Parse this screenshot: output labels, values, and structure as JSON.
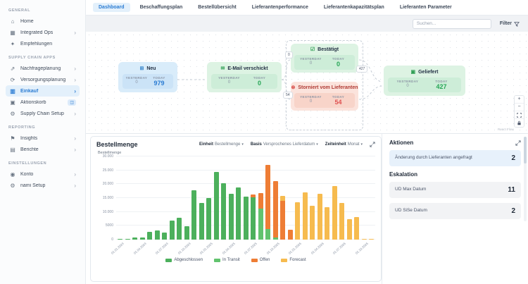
{
  "icons": {
    "home": "⌂",
    "apps-grid": "▦",
    "recommendations": "✦",
    "demand-planning": "⇗",
    "supply-planning": "⟳",
    "purchasing-cart": "▥",
    "action-basket": "▣",
    "settings-gear": "⚙",
    "insights-flag": "⚑",
    "reports": "▤",
    "account-user": "◉",
    "neu": "⊞",
    "email": "✉",
    "check": "☑",
    "cancel": "⊗",
    "delivered": "▣",
    "caret": "▾",
    "chevron": "›",
    "plus": "+",
    "minus": "−",
    "badge": "◫"
  },
  "sidebar": {
    "sections": [
      {
        "label": "GENERAL",
        "items": [
          {
            "label": "Home",
            "icon": "home",
            "chevron": false
          },
          {
            "label": "Integrated Ops",
            "icon": "apps-grid",
            "chevron": true
          },
          {
            "label": "Empfehlungen",
            "icon": "recommendations",
            "chevron": false
          }
        ]
      },
      {
        "label": "SUPPLY CHAIN APPS",
        "items": [
          {
            "label": "Nachfrageplanung",
            "icon": "demand-planning",
            "chevron": true
          },
          {
            "label": "Versorgungsplanung",
            "icon": "supply-planning",
            "chevron": true
          },
          {
            "label": "Einkauf",
            "icon": "purchasing-cart",
            "chevron": true,
            "active": true
          },
          {
            "label": "Aktionskorb",
            "icon": "action-basket",
            "chevron": false,
            "badge": true
          },
          {
            "label": "Supply Chain Setup",
            "icon": "settings-gear",
            "chevron": true
          }
        ]
      },
      {
        "label": "REPORTING",
        "items": [
          {
            "label": "Insights",
            "icon": "insights-flag",
            "chevron": true
          },
          {
            "label": "Berichte",
            "icon": "reports",
            "chevron": true
          }
        ]
      },
      {
        "label": "EINSTELLUNGEN",
        "items": [
          {
            "label": "Konto",
            "icon": "account-user",
            "chevron": true
          },
          {
            "label": "nami Setup",
            "icon": "settings-gear",
            "chevron": true
          }
        ]
      }
    ]
  },
  "tabs": {
    "items": [
      "Dashboard",
      "Beschaffungsplan",
      "Bestellübersicht",
      "Lieferantenperformance",
      "Lieferantenkapazitätsplan",
      "Lieferanten Parameter"
    ],
    "active_index": 0
  },
  "toolbar": {
    "search_placeholder": "Suchen...",
    "filter_label": "Filter"
  },
  "flow": {
    "yesterday_label": "YESTERDAY",
    "today_label": "TODAY",
    "cards": [
      {
        "title": "Neu",
        "yesterday": "0",
        "today": "979"
      },
      {
        "title": "E-Mail verschickt",
        "yesterday": "0",
        "today": "0"
      },
      {
        "title": "Bestätigt",
        "yesterday": "0",
        "today": "0"
      },
      {
        "title": "Storniert vom Lieferanten",
        "yesterday": "0",
        "today": "54"
      },
      {
        "title": "Geliefert",
        "yesterday": "0",
        "today": "427"
      }
    ],
    "edge_labels": [
      "0",
      "54",
      "427"
    ],
    "attribution": "React Flow"
  },
  "chart": {
    "title": "Bestellmenge",
    "controls": [
      {
        "label": "Einheit",
        "value": "Bestellmenge"
      },
      {
        "label": "Basis",
        "value": "Versprochenes Lieferdatum"
      },
      {
        "label": "Zeiteinheit",
        "value": "Monat"
      }
    ]
  },
  "chart_data": {
    "type": "bar",
    "title": "Bestellmenge",
    "ylabel": "Bestellmenge",
    "ylim": [
      0,
      30000
    ],
    "grid": true,
    "legend_position": "bottom",
    "yticks": [
      {
        "label": "0",
        "value": 0
      },
      {
        "label": "5000",
        "value": 5000
      },
      {
        "label": "10.000",
        "value": 10000
      },
      {
        "label": "15.000",
        "value": 15000
      },
      {
        "label": "20.000",
        "value": 20000
      },
      {
        "label": "25.000",
        "value": 25000
      },
      {
        "label": "30.000",
        "value": 30000
      }
    ],
    "colors": {
      "abgeschlossen": "#4cb05c",
      "in_transit": "#62c36e",
      "offen": "#ee7d35",
      "forecast": "#f6bb4f"
    },
    "legend": [
      {
        "label": "Abgeschlossen",
        "key": "abgeschlossen"
      },
      {
        "label": "In Transit",
        "key": "in_transit"
      },
      {
        "label": "Offen",
        "key": "offen"
      },
      {
        "label": "Forecast",
        "key": "forecast"
      }
    ],
    "label_every": 3,
    "bars": [
      {
        "month": "01.01.2024",
        "segments": [
          [
            "abgeschlossen",
            200
          ]
        ]
      },
      {
        "month": "01.02.2024",
        "segments": [
          [
            "abgeschlossen",
            150
          ]
        ]
      },
      {
        "month": "01.03.2024",
        "segments": [
          [
            "abgeschlossen",
            700
          ]
        ]
      },
      {
        "month": "01.04.2024",
        "segments": [
          [
            "abgeschlossen",
            650
          ]
        ]
      },
      {
        "month": "01.05.2024",
        "segments": [
          [
            "abgeschlossen",
            2900
          ]
        ]
      },
      {
        "month": "01.06.2024",
        "segments": [
          [
            "abgeschlossen",
            3400
          ]
        ]
      },
      {
        "month": "01.07.2024",
        "segments": [
          [
            "abgeschlossen",
            2500
          ]
        ]
      },
      {
        "month": "01.08.2024",
        "segments": [
          [
            "abgeschlossen",
            6800
          ]
        ]
      },
      {
        "month": "01.09.2024",
        "segments": [
          [
            "abgeschlossen",
            7900
          ]
        ]
      },
      {
        "month": "01.10.2024",
        "segments": [
          [
            "abgeschlossen",
            4800
          ]
        ]
      },
      {
        "month": "01.11.2024",
        "segments": [
          [
            "abgeschlossen",
            17800
          ]
        ]
      },
      {
        "month": "01.12.2024",
        "segments": [
          [
            "abgeschlossen",
            13200
          ]
        ]
      },
      {
        "month": "01.01.2025",
        "segments": [
          [
            "abgeschlossen",
            15000
          ]
        ]
      },
      {
        "month": "01.02.2025",
        "segments": [
          [
            "abgeschlossen",
            24500
          ]
        ]
      },
      {
        "month": "01.03.2025",
        "segments": [
          [
            "abgeschlossen",
            20400
          ]
        ]
      },
      {
        "month": "01.04.2025",
        "segments": [
          [
            "abgeschlossen",
            16500
          ]
        ]
      },
      {
        "month": "01.05.2025",
        "segments": [
          [
            "abgeschlossen",
            18800
          ]
        ]
      },
      {
        "month": "01.06.2025",
        "segments": [
          [
            "abgeschlossen",
            15600
          ]
        ]
      },
      {
        "month": "01.07.2025",
        "segments": [
          [
            "abgeschlossen",
            15200
          ],
          [
            "offen",
            900
          ]
        ]
      },
      {
        "month": "01.08.2025",
        "segments": [
          [
            "in_transit",
            11300
          ],
          [
            "offen",
            5500
          ]
        ]
      },
      {
        "month": "01.09.2025",
        "segments": [
          [
            "in_transit",
            3900
          ],
          [
            "offen",
            23200
          ]
        ]
      },
      {
        "month": "01.10.2025",
        "segments": [
          [
            "in_transit",
            700
          ],
          [
            "offen",
            20400
          ]
        ]
      },
      {
        "month": "01.11.2025",
        "segments": [
          [
            "offen",
            14000
          ],
          [
            "forecast",
            1800
          ]
        ]
      },
      {
        "month": "01.12.2025",
        "segments": [
          [
            "offen",
            3500
          ]
        ]
      },
      {
        "month": "01.01.2026",
        "segments": [
          [
            "forecast",
            13500
          ]
        ]
      },
      {
        "month": "01.02.2026",
        "segments": [
          [
            "forecast",
            17000
          ]
        ]
      },
      {
        "month": "01.03.2026",
        "segments": [
          [
            "forecast",
            12200
          ]
        ]
      },
      {
        "month": "01.04.2026",
        "segments": [
          [
            "forecast",
            16600
          ]
        ]
      },
      {
        "month": "01.05.2026",
        "segments": [
          [
            "forecast",
            11800
          ]
        ]
      },
      {
        "month": "01.06.2026",
        "segments": [
          [
            "forecast",
            19200
          ]
        ]
      },
      {
        "month": "01.07.2026",
        "segments": [
          [
            "forecast",
            13100
          ]
        ]
      },
      {
        "month": "01.08.2026",
        "segments": [
          [
            "forecast",
            7400
          ]
        ]
      },
      {
        "month": "01.09.2026",
        "segments": [
          [
            "forecast",
            8200
          ]
        ]
      },
      {
        "month": "01.10.2026",
        "segments": [
          [
            "forecast",
            250
          ]
        ]
      },
      {
        "month": "01.11.2026",
        "segments": [
          [
            "forecast",
            150
          ]
        ]
      }
    ]
  },
  "actions_panel": {
    "title": "Aktionen",
    "items": [
      {
        "label": "Änderung durch Lieferanten angefragt",
        "value": "2"
      }
    ],
    "eskalation_title": "Eskalation",
    "eskalation_items": [
      {
        "label": "UD Max Datum",
        "value": "11"
      },
      {
        "label": "UD SiSe Datum",
        "value": "2"
      }
    ]
  }
}
